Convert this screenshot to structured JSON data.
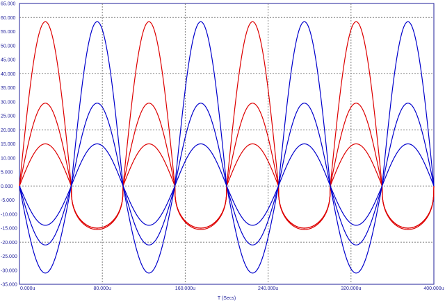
{
  "chart_data": {
    "type": "line",
    "title": "",
    "xlabel": "T (Secs)",
    "ylabel": "",
    "xlim": [
      0,
      400
    ],
    "ylim": [
      -35,
      65
    ],
    "x_unit": "u",
    "y_ticks": [
      "65.000",
      "60.000",
      "55.000",
      "50.000",
      "45.000",
      "40.000",
      "35.000",
      "30.000",
      "25.000",
      "20.000",
      "15.000",
      "10.000",
      "5.000",
      "0.000",
      "-5.000",
      "-10.000",
      "-15.000",
      "-20.000",
      "-25.000",
      "-30.000",
      "-35.000"
    ],
    "x_ticks": [
      "0.000u",
      "80.000u",
      "160.000u",
      "240.000u",
      "320.000u",
      "400.000u"
    ],
    "period_us": 100,
    "grid": true,
    "colors": {
      "red": "#dd0000",
      "blue": "#0000cc",
      "axis": "#1f1f9a",
      "grid": "#7f7f7f"
    },
    "series": [
      {
        "color": "red",
        "phase": "first-half",
        "peak": 58.5,
        "trough": -15.5
      },
      {
        "color": "red",
        "phase": "first-half",
        "peak": 29.5,
        "trough": -15.0
      },
      {
        "color": "red",
        "phase": "first-half",
        "peak": 15.0,
        "trough": -15.0
      },
      {
        "color": "blue",
        "phase": "second-half",
        "peak": 58.5,
        "trough": -31.0
      },
      {
        "color": "blue",
        "phase": "second-half",
        "peak": 29.5,
        "trough": -21.0
      },
      {
        "color": "blue",
        "phase": "second-half",
        "peak": 15.0,
        "trough": -14.0
      }
    ]
  }
}
